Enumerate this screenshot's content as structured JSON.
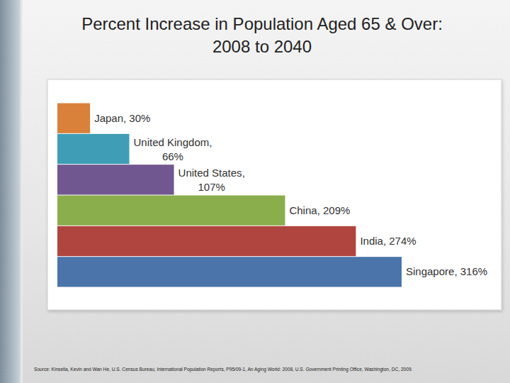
{
  "chart_data": {
    "type": "bar",
    "title": "Percent Increase in Population Aged 65 & Over:\n2008 to 2040",
    "categories": [
      "Japan",
      "United Kingdom",
      "United States",
      "China",
      "India",
      "Singapore"
    ],
    "values": [
      30,
      66,
      107,
      209,
      274,
      316
    ],
    "value_labels": [
      "30%",
      "66%",
      "107%",
      "209%",
      "274%",
      "316%"
    ],
    "colors": [
      "#d9813a",
      "#3f9db5",
      "#71578f",
      "#8aae4c",
      "#b0453f",
      "#4a74aa"
    ],
    "orientation": "horizontal",
    "data_labels": true,
    "tick_labels": false,
    "grid": false,
    "source": "Source: Kinsella, Kevin and Wan He, U.S. Census Bureau, International Population Reports, P95/09-1, An Aging World: 2008, U.S. Government Printing Office, Washington, DC, 2009."
  }
}
